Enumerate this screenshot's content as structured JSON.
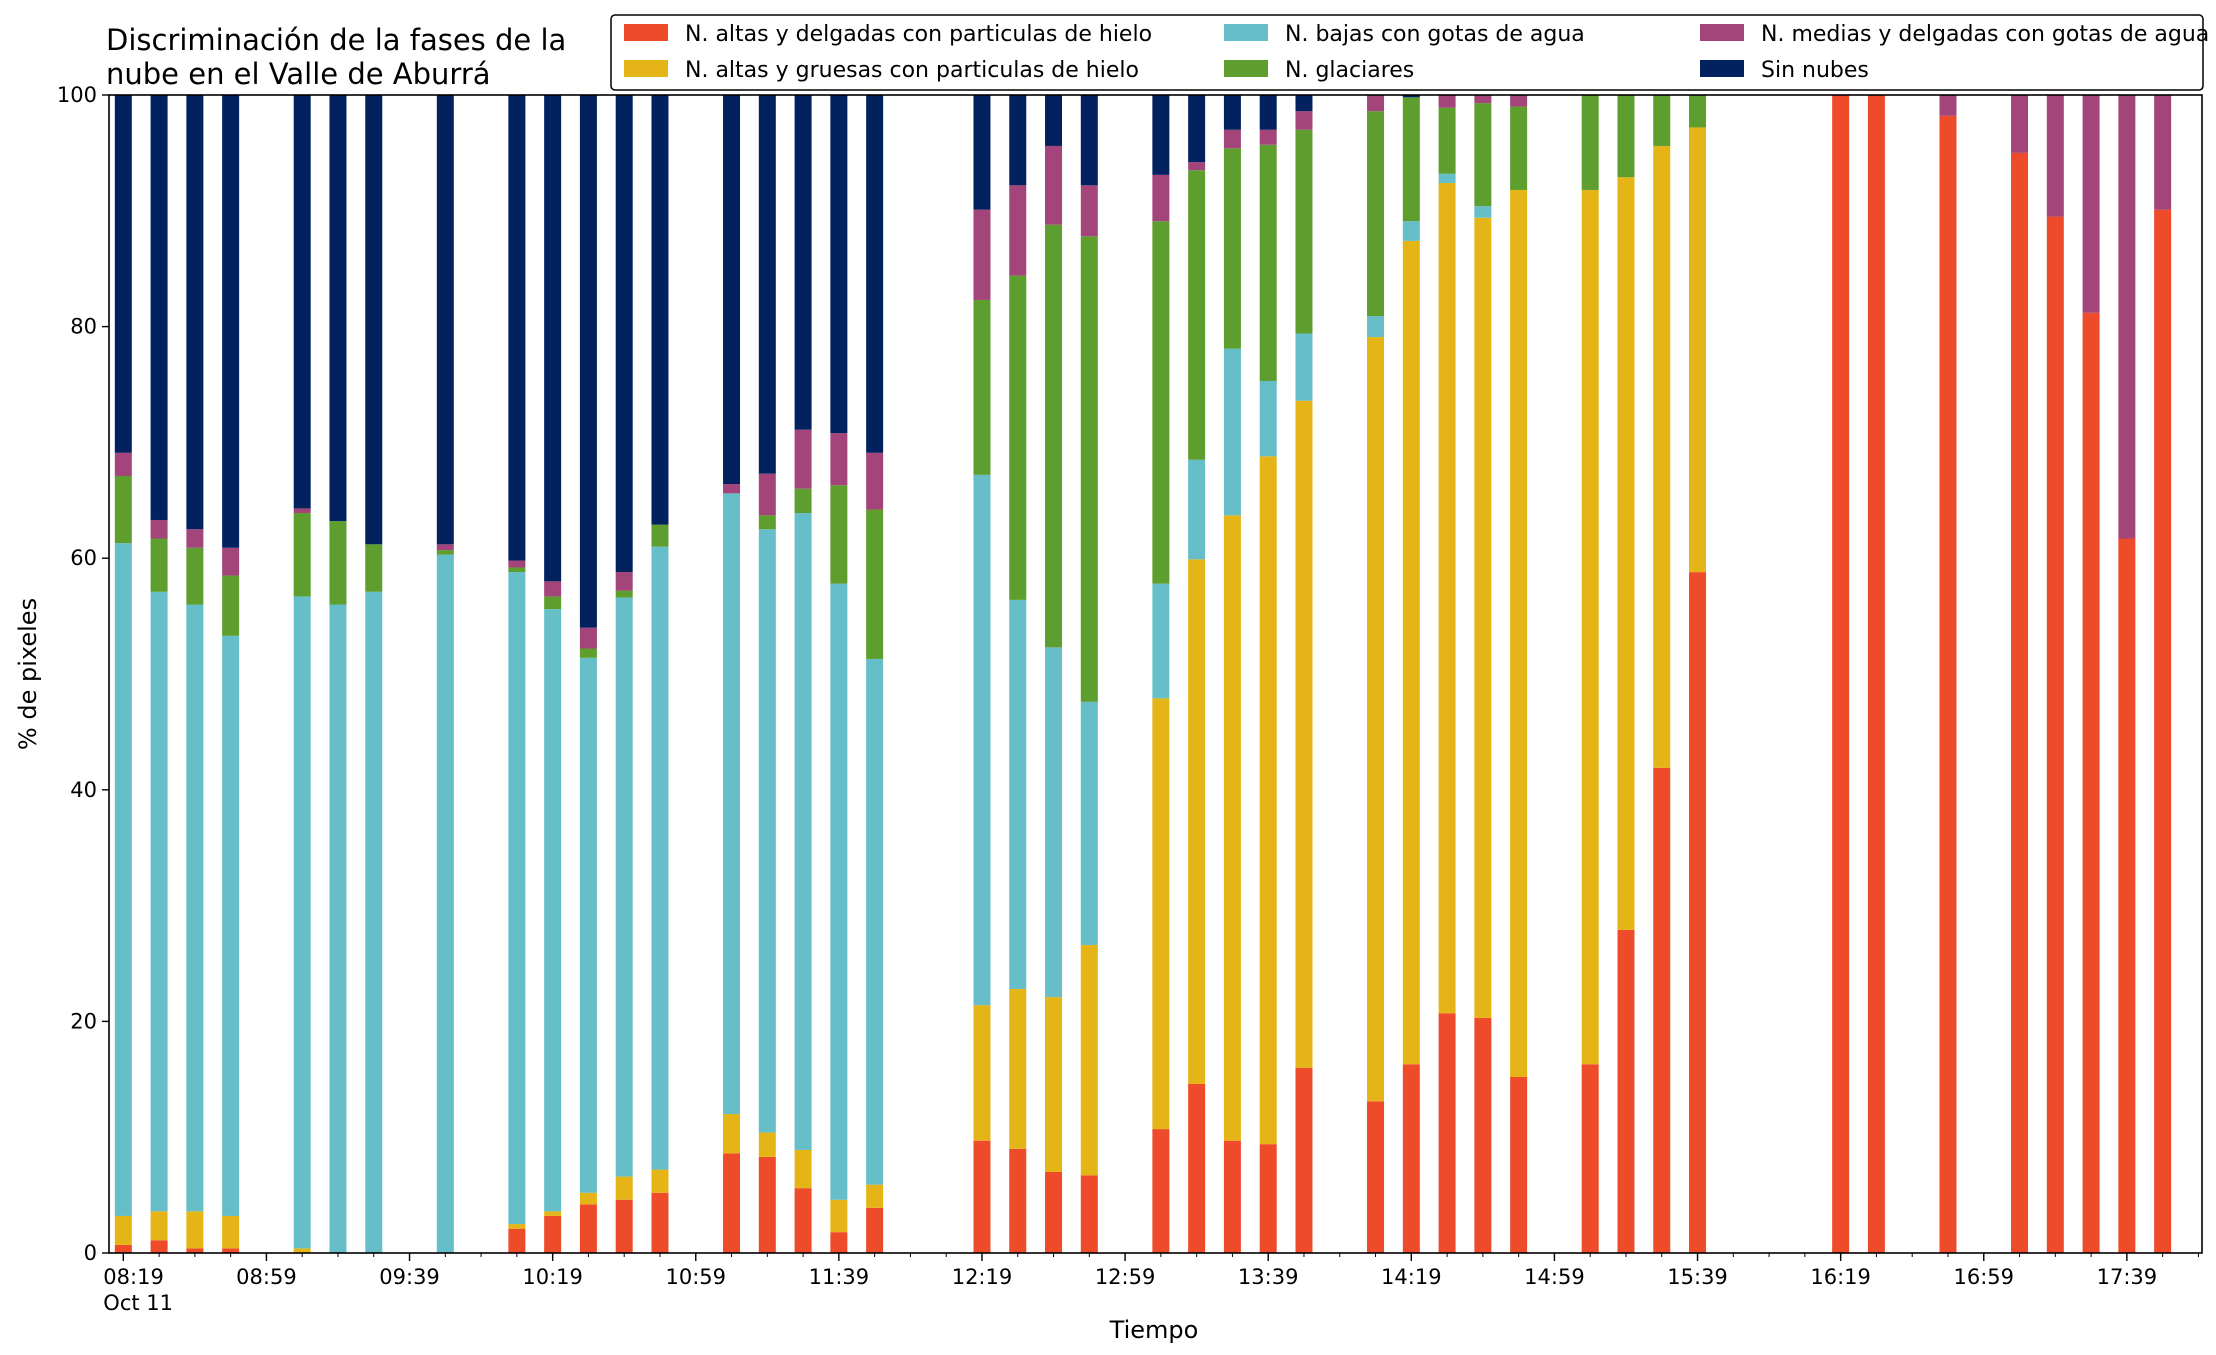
{
  "chart_data": {
    "type": "bar",
    "stacked": true,
    "title_lines": [
      "Discriminación de la fases de la",
      "nube en el Valle de Aburrá"
    ],
    "xlabel": "Tiempo",
    "ylabel": "% de pixeles",
    "ylim": [
      0,
      100
    ],
    "yticks": [
      0,
      20,
      40,
      60,
      80,
      100
    ],
    "grid": false,
    "legend_placement": "top-right",
    "x_range": [
      "08:15",
      "18:00"
    ],
    "x_tick_labels": [
      {
        "time": "08:19",
        "label": "08:19",
        "sublabel": "Oct 11"
      },
      {
        "time": "08:59",
        "label": "08:59"
      },
      {
        "time": "09:39",
        "label": "09:39"
      },
      {
        "time": "10:19",
        "label": "10:19"
      },
      {
        "time": "10:59",
        "label": "10:59"
      },
      {
        "time": "11:39",
        "label": "11:39"
      },
      {
        "time": "12:19",
        "label": "12:19"
      },
      {
        "time": "12:59",
        "label": "12:59"
      },
      {
        "time": "13:39",
        "label": "13:39"
      },
      {
        "time": "14:19",
        "label": "14:19"
      },
      {
        "time": "14:59",
        "label": "14:59"
      },
      {
        "time": "15:39",
        "label": "15:39"
      },
      {
        "time": "16:19",
        "label": "16:19"
      },
      {
        "time": "16:59",
        "label": "16:59"
      },
      {
        "time": "17:39",
        "label": "17:39"
      }
    ],
    "minor_tick_interval_minutes": 10,
    "series": [
      {
        "name": "N. altas y delgadas con particulas de hielo",
        "color": "#ee4b2b"
      },
      {
        "name": "N. altas y gruesas con particulas de hielo",
        "color": "#e5b517"
      },
      {
        "name": "N. bajas con gotas de agua",
        "color": "#66bec8"
      },
      {
        "name": "N. glaciares",
        "color": "#5d9e2e"
      },
      {
        "name": "N. medias y delgadas con gotas de agua",
        "color": "#a3457b"
      },
      {
        "name": "Sin nubes",
        "color": "#02215f"
      }
    ],
    "x": [
      "08:19",
      "08:29",
      "08:39",
      "08:49",
      "09:09",
      "09:19",
      "09:29",
      "09:49",
      "10:09",
      "10:19",
      "10:29",
      "10:39",
      "10:49",
      "11:09",
      "11:19",
      "11:29",
      "11:39",
      "11:49",
      "12:19",
      "12:29",
      "12:39",
      "12:49",
      "13:09",
      "13:19",
      "13:29",
      "13:39",
      "13:49",
      "14:09",
      "14:19",
      "14:29",
      "14:39",
      "14:49",
      "15:09",
      "15:19",
      "15:29",
      "15:39",
      "16:19",
      "16:29",
      "16:49",
      "17:09",
      "17:19",
      "17:29",
      "17:39",
      "17:49"
    ],
    "values": [
      [
        0.7,
        2.5,
        58.1,
        5.8,
        2.0,
        30.9
      ],
      [
        1.1,
        2.5,
        53.5,
        4.6,
        1.6,
        36.7
      ],
      [
        0.4,
        3.2,
        52.4,
        4.9,
        1.6,
        37.5
      ],
      [
        0.4,
        2.8,
        50.1,
        5.2,
        2.4,
        39.1
      ],
      [
        0.0,
        0.4,
        56.3,
        7.2,
        0.4,
        35.7
      ],
      [
        0.0,
        0.0,
        56.0,
        7.2,
        0.0,
        36.8
      ],
      [
        0.0,
        0.0,
        57.1,
        4.1,
        0.0,
        38.8
      ],
      [
        0.0,
        0.0,
        60.3,
        0.4,
        0.5,
        38.8
      ],
      [
        2.1,
        0.4,
        56.3,
        0.4,
        0.6,
        40.2
      ],
      [
        3.2,
        0.4,
        52.0,
        1.1,
        1.3,
        42.0
      ],
      [
        4.2,
        1.0,
        46.2,
        0.8,
        1.8,
        46.0
      ],
      [
        4.6,
        2.0,
        50.0,
        0.6,
        1.6,
        41.2
      ],
      [
        5.2,
        2.0,
        53.8,
        1.9,
        0.0,
        37.1
      ],
      [
        8.6,
        3.4,
        53.6,
        0.0,
        0.8,
        33.6
      ],
      [
        8.3,
        2.1,
        52.1,
        1.2,
        3.6,
        32.7
      ],
      [
        5.6,
        3.3,
        55.0,
        2.1,
        5.1,
        28.9
      ],
      [
        1.8,
        2.8,
        53.2,
        8.5,
        4.5,
        29.2
      ],
      [
        3.9,
        2.0,
        45.4,
        12.9,
        4.9,
        30.9
      ],
      [
        9.7,
        11.7,
        45.8,
        15.1,
        7.8,
        9.9
      ],
      [
        9.0,
        13.8,
        33.6,
        28.0,
        7.8,
        7.8
      ],
      [
        7.0,
        15.1,
        30.2,
        36.5,
        6.8,
        4.4
      ],
      [
        6.7,
        19.9,
        21.0,
        40.2,
        4.4,
        7.8
      ],
      [
        10.7,
        37.2,
        9.9,
        31.3,
        4.0,
        6.9
      ],
      [
        14.6,
        45.3,
        8.6,
        25.0,
        0.7,
        5.8
      ],
      [
        9.7,
        54.0,
        14.4,
        17.3,
        1.6,
        3.0
      ],
      [
        9.4,
        59.4,
        6.5,
        20.4,
        1.3,
        3.0
      ],
      [
        16.0,
        57.6,
        5.8,
        17.6,
        1.6,
        1.4
      ],
      [
        13.1,
        66.0,
        1.8,
        17.7,
        1.4,
        0.0
      ],
      [
        16.3,
        71.1,
        1.7,
        10.7,
        0.0,
        0.2
      ],
      [
        20.7,
        71.7,
        0.8,
        5.7,
        1.1,
        0.0
      ],
      [
        20.3,
        69.1,
        1.0,
        8.9,
        0.7,
        0.0
      ],
      [
        15.2,
        76.6,
        0.0,
        7.2,
        1.0,
        0.0
      ],
      [
        16.3,
        75.5,
        0.0,
        8.2,
        0.0,
        0.0
      ],
      [
        27.9,
        65.0,
        0.0,
        7.1,
        0.0,
        0.0
      ],
      [
        41.9,
        53.7,
        0.0,
        4.4,
        0.0,
        0.0
      ],
      [
        58.8,
        38.4,
        0.0,
        2.8,
        0.0,
        0.0
      ],
      [
        100.0,
        0.0,
        0.0,
        0.0,
        0.0,
        0.0
      ],
      [
        100.0,
        0.0,
        0.0,
        0.0,
        0.0,
        0.0
      ],
      [
        98.2,
        0.0,
        0.0,
        0.0,
        1.8,
        0.0
      ],
      [
        95.0,
        0.0,
        0.0,
        0.0,
        5.0,
        0.0
      ],
      [
        89.5,
        0.0,
        0.0,
        0.0,
        10.5,
        0.0
      ],
      [
        81.2,
        0.0,
        0.0,
        0.0,
        18.8,
        0.0
      ],
      [
        61.7,
        0.0,
        0.0,
        0.0,
        38.3,
        0.0
      ],
      [
        90.1,
        0.0,
        0.0,
        0.0,
        9.9,
        0.0
      ]
    ]
  }
}
